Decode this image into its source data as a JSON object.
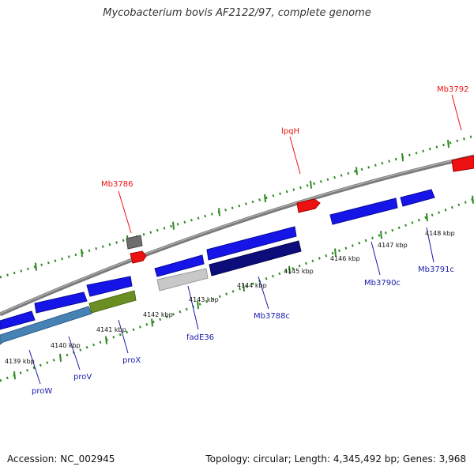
{
  "title": "Mycobacterium bovis AF2122/97, complete genome",
  "footer": {
    "accession": "Accession: NC_002945",
    "topology": "Topology: circular; Length: 4,345,492 bp; Genes: 3,968"
  },
  "colors": {
    "backbone": "#808080",
    "tick_marks": "#2e8b22",
    "gene_blue": "#1515e8",
    "gene_red": "#ee1111",
    "gene_navy": "#0c0c7a",
    "gene_steelblue": "#4682b4",
    "gene_olive": "#6b8e23",
    "gene_gray": "#6e6e6e",
    "gene_lightgray": "#c8c8c8",
    "label_blue": "#1a1aaa",
    "label_red": "#ee1111"
  },
  "kbp_ticks": [
    "4139 kbp",
    "4140 kbp",
    "4141 kbp",
    "4142 kbp",
    "4143 kbp",
    "4144 kbp",
    "4145 kbp",
    "4146 kbp",
    "4147 kbp",
    "4148 kbp"
  ],
  "gene_labels": [
    {
      "text": "proW",
      "color": "blue"
    },
    {
      "text": "proV",
      "color": "blue"
    },
    {
      "text": "proX",
      "color": "blue"
    },
    {
      "text": "fadE36",
      "color": "blue"
    },
    {
      "text": "Mb3788c",
      "color": "blue"
    },
    {
      "text": "Mb3790c",
      "color": "blue"
    },
    {
      "text": "Mb3791c",
      "color": "blue"
    },
    {
      "text": "Mb3786",
      "color": "red"
    },
    {
      "text": "lpqH",
      "color": "red"
    },
    {
      "text": "Mb3792",
      "color": "red"
    }
  ]
}
